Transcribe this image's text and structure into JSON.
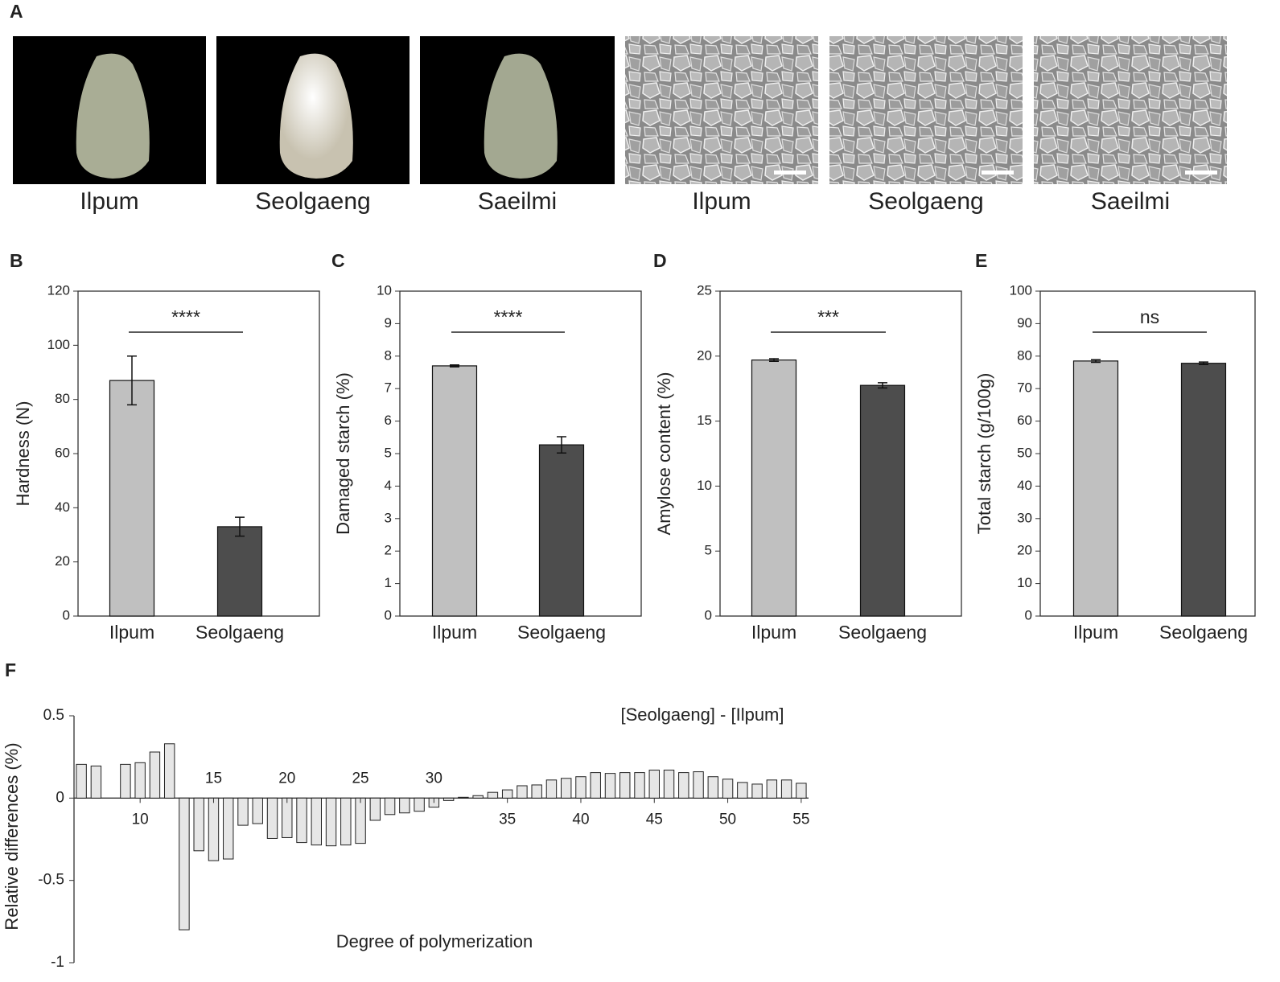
{
  "figure_a": {
    "panel": "A",
    "labels": [
      "Ilpum",
      "Seolgaeng",
      "Saeilmi",
      "Ilpum",
      "Seolgaeng",
      "Saeilmi"
    ]
  },
  "chart_data": [
    {
      "type": "bar",
      "panel": "B",
      "ylabel": "Hardness (N)",
      "categories": [
        "Ilpum",
        "Seolgaeng"
      ],
      "values": [
        87,
        33
      ],
      "errors": [
        9,
        3.5
      ],
      "colors": [
        "#c0c0c0",
        "#4d4d4d"
      ],
      "ylim": [
        0,
        120
      ],
      "yticks": [
        0,
        20,
        40,
        60,
        80,
        100,
        120
      ],
      "annotation": "****"
    },
    {
      "type": "bar",
      "panel": "C",
      "ylabel": "Damaged  starch (%)",
      "categories": [
        "Ilpum",
        "Seolgaeng"
      ],
      "values": [
        7.7,
        5.27
      ],
      "errors": [
        0.03,
        0.25
      ],
      "colors": [
        "#c0c0c0",
        "#4d4d4d"
      ],
      "ylim": [
        0,
        10
      ],
      "yticks": [
        0,
        1,
        2,
        3,
        4,
        5,
        6,
        7,
        8,
        9,
        10
      ],
      "annotation": "****"
    },
    {
      "type": "bar",
      "panel": "D",
      "ylabel": "Amylose content  (%)",
      "categories": [
        "Ilpum",
        "Seolgaeng"
      ],
      "values": [
        19.7,
        17.75
      ],
      "errors": [
        0.1,
        0.2
      ],
      "colors": [
        "#c0c0c0",
        "#4d4d4d"
      ],
      "ylim": [
        0,
        25
      ],
      "yticks": [
        0,
        5,
        10,
        15,
        20,
        25
      ],
      "annotation": "***"
    },
    {
      "type": "bar",
      "panel": "E",
      "ylabel": "Total starch (g/100g)",
      "categories": [
        "Ilpum",
        "Seolgaeng"
      ],
      "values": [
        78.5,
        77.8
      ],
      "errors": [
        0.4,
        0.4
      ],
      "colors": [
        "#c0c0c0",
        "#4d4d4d"
      ],
      "ylim": [
        0,
        100
      ],
      "yticks": [
        0,
        10,
        20,
        30,
        40,
        50,
        60,
        70,
        80,
        90,
        100
      ],
      "annotation": "ns"
    },
    {
      "type": "diffbar",
      "panel": "F",
      "annotation": "[Seolgaeng] - [Ilpum]",
      "xlabel": "Degree of polymerization",
      "ylabel": "Relative differences (%)",
      "color": "#e6e6e6",
      "x": [
        6,
        7,
        8,
        9,
        10,
        11,
        12,
        13,
        14,
        15,
        16,
        17,
        18,
        19,
        20,
        21,
        22,
        23,
        24,
        25,
        26,
        27,
        28,
        29,
        30,
        31,
        32,
        33,
        34,
        35,
        36,
        37,
        38,
        39,
        40,
        41,
        42,
        43,
        44,
        45,
        46,
        47,
        48,
        49,
        50,
        51,
        52,
        53,
        54,
        55
      ],
      "values": [
        0.205,
        0.195,
        0,
        0.205,
        0.215,
        0.28,
        0.33,
        -0.8,
        -0.32,
        -0.38,
        -0.37,
        -0.165,
        -0.155,
        -0.245,
        -0.24,
        -0.27,
        -0.285,
        -0.29,
        -0.285,
        -0.275,
        -0.135,
        -0.1,
        -0.09,
        -0.08,
        -0.055,
        -0.015,
        0.005,
        0.015,
        0.035,
        0.05,
        0.075,
        0.08,
        0.11,
        0.12,
        0.13,
        0.155,
        0.15,
        0.155,
        0.155,
        0.17,
        0.17,
        0.155,
        0.16,
        0.13,
        0.115,
        0.095,
        0.085,
        0.11,
        0.11,
        0.09
      ],
      "xlim": [
        5.5,
        55.5
      ],
      "xticks": [
        10,
        15,
        20,
        25,
        30,
        35,
        40,
        45,
        50,
        55
      ],
      "ylim": [
        -1,
        0.5
      ],
      "yticks": [
        0.5,
        0,
        -0.5,
        -1
      ]
    }
  ]
}
